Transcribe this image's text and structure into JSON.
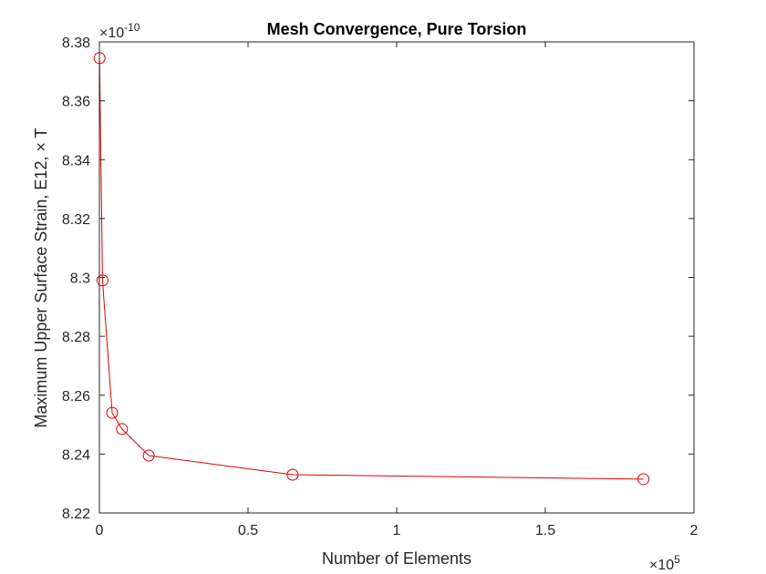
{
  "chart_data": {
    "type": "line",
    "title": "Mesh Convergence, Pure Torsion",
    "xlabel": "Number of Elements",
    "ylabel": "Maximum Upper Surface Strain, E12, × T",
    "x_exponent": "5",
    "y_exponent": "-10",
    "x_exponent_prefix": "×10",
    "y_exponent_prefix": "×10",
    "xlim": [
      0,
      2
    ],
    "ylim": [
      8.22,
      8.38
    ],
    "xticks": [
      "0",
      "0.5",
      "1",
      "1.5",
      "2"
    ],
    "yticks": [
      "8.22",
      "8.24",
      "8.26",
      "8.28",
      "8.3",
      "8.32",
      "8.34",
      "8.36",
      "8.38"
    ],
    "grid": false,
    "series": [
      {
        "color": "#e00000",
        "marker": "circle",
        "x": [
          0.0005,
          0.0105,
          0.043,
          0.076,
          0.166,
          0.65,
          1.83
        ],
        "y": [
          8.3745,
          8.299,
          8.254,
          8.2485,
          8.2395,
          8.233,
          8.2315
        ]
      }
    ]
  }
}
